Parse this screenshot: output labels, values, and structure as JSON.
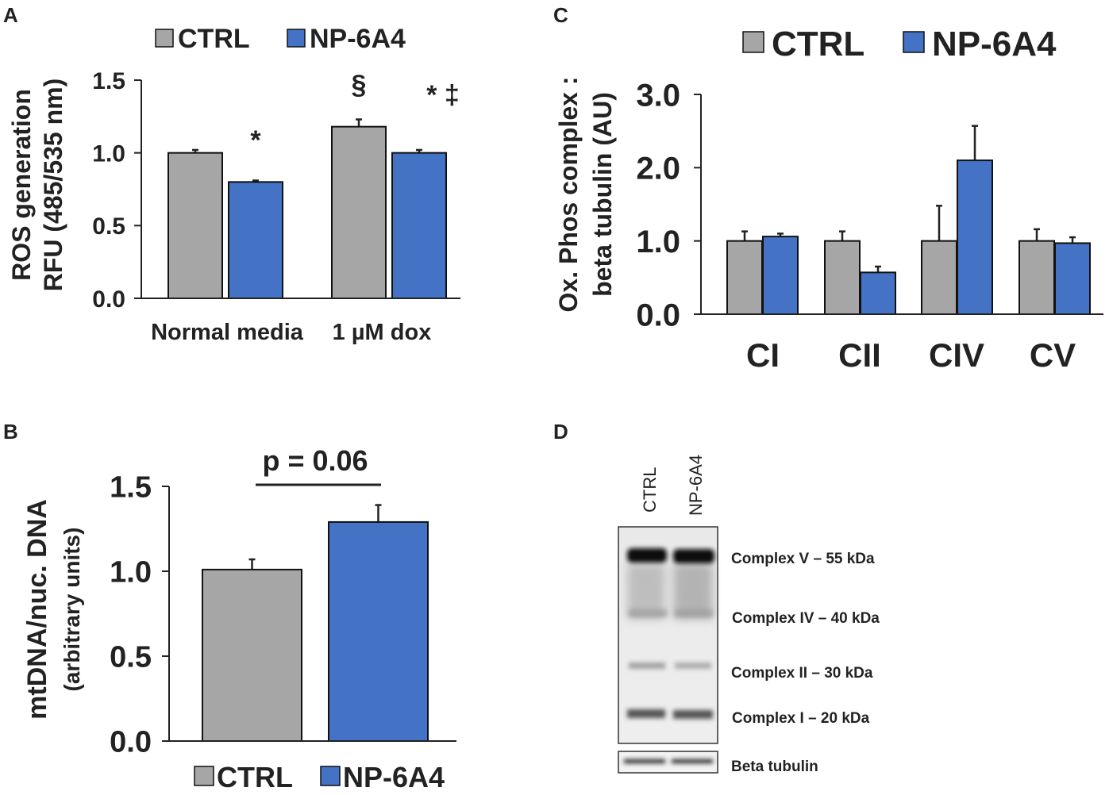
{
  "colors": {
    "ctrl": "#a6a6a6",
    "np": "#4472c4",
    "axis": "#222222",
    "bar_edge": "#111111"
  },
  "panels": {
    "A": {
      "label": "A",
      "chart_data": {
        "type": "bar",
        "title": "",
        "categories": [
          "Normal media",
          "1 µM dox"
        ],
        "series": [
          {
            "name": "CTRL",
            "values": [
              1.0,
              1.18
            ],
            "errors": [
              0.02,
              0.05
            ]
          },
          {
            "name": "NP-6A4",
            "values": [
              0.8,
              1.0
            ],
            "errors": [
              0.01,
              0.02
            ]
          }
        ],
        "ylabel": "ROS generation",
        "ylabel2": "RFU (485/535 nm)",
        "xlabel": "",
        "ylim": [
          0,
          1.5
        ],
        "yticks": [
          "0.0",
          "0.5",
          "1.0",
          "1.5"
        ],
        "annotations": [
          {
            "text": "*",
            "category": 0,
            "series": 1
          },
          {
            "text": "§",
            "category": 1,
            "series": 0
          },
          {
            "text": "* ‡",
            "category": 1,
            "series": 1
          }
        ],
        "legend": [
          "CTRL",
          "NP-6A4"
        ],
        "legend_position": "top"
      }
    },
    "B": {
      "label": "B",
      "chart_data": {
        "type": "bar",
        "title": "",
        "categories": [
          "CTRL",
          "NP-6A4"
        ],
        "values": [
          1.01,
          1.29
        ],
        "errors": [
          0.06,
          0.1
        ],
        "ylabel": "mtDNA/nuc. DNA",
        "ylabel2": "(arbitrary units)",
        "xlabel": "",
        "ylim": [
          0,
          1.5
        ],
        "yticks": [
          "0.0",
          "0.5",
          "1.0",
          "1.5"
        ],
        "significance": "p = 0.06",
        "legend": [
          "CTRL",
          "NP-6A4"
        ],
        "legend_position": "bottom"
      }
    },
    "C": {
      "label": "C",
      "chart_data": {
        "type": "bar",
        "title": "",
        "categories": [
          "CI",
          "CII",
          "CIV",
          "CV"
        ],
        "series": [
          {
            "name": "CTRL",
            "values": [
              1.0,
              1.0,
              1.0,
              1.0
            ],
            "errors": [
              0.13,
              0.13,
              0.48,
              0.16
            ]
          },
          {
            "name": "NP-6A4",
            "values": [
              1.06,
              0.57,
              2.1,
              0.97
            ],
            "errors": [
              0.04,
              0.08,
              0.47,
              0.08
            ]
          }
        ],
        "ylabel": "Ox. Phos complex :",
        "ylabel2": "beta tubulin (AU)",
        "xlabel": "",
        "ylim": [
          0,
          3.0
        ],
        "yticks": [
          "0.0",
          "1.0",
          "2.0",
          "3.0"
        ],
        "legend": [
          "CTRL",
          "NP-6A4"
        ],
        "legend_position": "top"
      }
    },
    "D": {
      "label": "D",
      "lanes": [
        "CTRL",
        "NP-6A4"
      ],
      "bands": [
        "Complex V – 55 kDa",
        "Complex IV – 40 kDa",
        "Complex II – 30 kDa",
        "Complex I – 20 kDa"
      ],
      "loading_control": "Beta tubulin"
    }
  }
}
